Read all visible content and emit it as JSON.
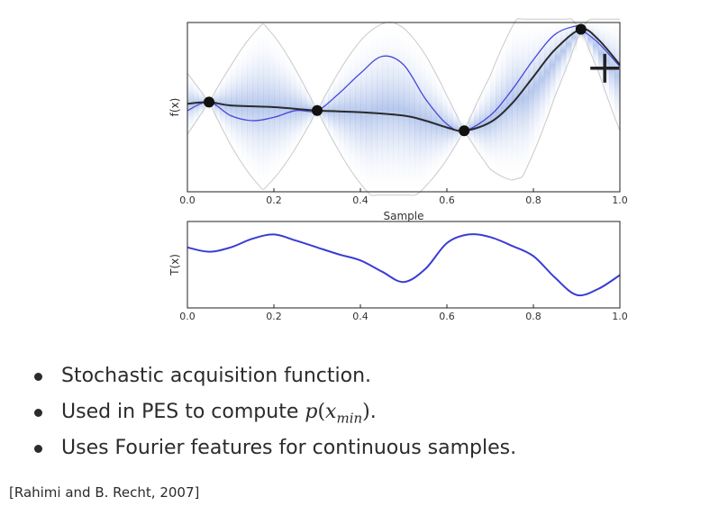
{
  "chart_data": [
    {
      "type": "line",
      "title": "",
      "xlabel": "Sample",
      "ylabel": "f(x)",
      "xlim": [
        0,
        1
      ],
      "xticks": [
        "0.0",
        "0.2",
        "0.4",
        "0.6",
        "0.8",
        "1.0"
      ],
      "grid": false,
      "series": [
        {
          "role": "posterior-mean",
          "color": "#2a2a2a",
          "points": [
            [
              0.0,
              0.52
            ],
            [
              0.05,
              0.53
            ],
            [
              0.1,
              0.51
            ],
            [
              0.2,
              0.5
            ],
            [
              0.3,
              0.48
            ],
            [
              0.4,
              0.47
            ],
            [
              0.5,
              0.45
            ],
            [
              0.55,
              0.42
            ],
            [
              0.6,
              0.38
            ],
            [
              0.64,
              0.36
            ],
            [
              0.7,
              0.41
            ],
            [
              0.75,
              0.52
            ],
            [
              0.8,
              0.68
            ],
            [
              0.85,
              0.84
            ],
            [
              0.91,
              0.96
            ],
            [
              0.95,
              0.9
            ],
            [
              1.0,
              0.75
            ]
          ]
        },
        {
          "role": "function-sample",
          "color": "#4848d8",
          "points": [
            [
              0.0,
              0.48
            ],
            [
              0.05,
              0.53
            ],
            [
              0.1,
              0.45
            ],
            [
              0.15,
              0.42
            ],
            [
              0.2,
              0.44
            ],
            [
              0.25,
              0.48
            ],
            [
              0.3,
              0.48
            ],
            [
              0.35,
              0.58
            ],
            [
              0.4,
              0.7
            ],
            [
              0.45,
              0.8
            ],
            [
              0.5,
              0.75
            ],
            [
              0.55,
              0.55
            ],
            [
              0.6,
              0.4
            ],
            [
              0.64,
              0.36
            ],
            [
              0.7,
              0.45
            ],
            [
              0.75,
              0.6
            ],
            [
              0.8,
              0.78
            ],
            [
              0.85,
              0.93
            ],
            [
              0.9,
              0.98
            ],
            [
              0.91,
              0.96
            ],
            [
              0.95,
              0.88
            ],
            [
              1.0,
              0.74
            ]
          ]
        }
      ],
      "observations": [
        [
          0.05,
          0.53
        ],
        [
          0.3,
          0.48
        ],
        [
          0.64,
          0.36
        ],
        [
          0.91,
          0.96
        ]
      ],
      "candidate_marker": [
        0.965,
        0.73
      ]
    },
    {
      "type": "line",
      "title": "",
      "xlabel": "",
      "ylabel": "T(x)",
      "xlim": [
        0,
        1
      ],
      "xticks": [
        "0.0",
        "0.2",
        "0.4",
        "0.6",
        "0.8",
        "1.0"
      ],
      "grid": false,
      "series": [
        {
          "role": "sample-path",
          "color": "#3b3bd6",
          "points": [
            [
              0.0,
              0.7
            ],
            [
              0.05,
              0.65
            ],
            [
              0.1,
              0.7
            ],
            [
              0.15,
              0.8
            ],
            [
              0.2,
              0.85
            ],
            [
              0.25,
              0.78
            ],
            [
              0.3,
              0.7
            ],
            [
              0.35,
              0.62
            ],
            [
              0.4,
              0.55
            ],
            [
              0.45,
              0.42
            ],
            [
              0.5,
              0.3
            ],
            [
              0.55,
              0.45
            ],
            [
              0.6,
              0.75
            ],
            [
              0.65,
              0.85
            ],
            [
              0.7,
              0.82
            ],
            [
              0.75,
              0.72
            ],
            [
              0.8,
              0.6
            ],
            [
              0.85,
              0.35
            ],
            [
              0.9,
              0.15
            ],
            [
              0.95,
              0.22
            ],
            [
              1.0,
              0.38
            ]
          ]
        }
      ]
    }
  ],
  "bullets": [
    {
      "text": "Stochastic acquisition function."
    },
    {
      "text_pre": "Used in PES to compute ",
      "math_p": "p",
      "math_open": "(",
      "math_x": "x",
      "math_sub": "min",
      "math_close": ")",
      "text_post": "."
    },
    {
      "text": "Uses Fourier features for continuous samples."
    }
  ],
  "citation": "[Rahimi and B. Recht, 2007]"
}
